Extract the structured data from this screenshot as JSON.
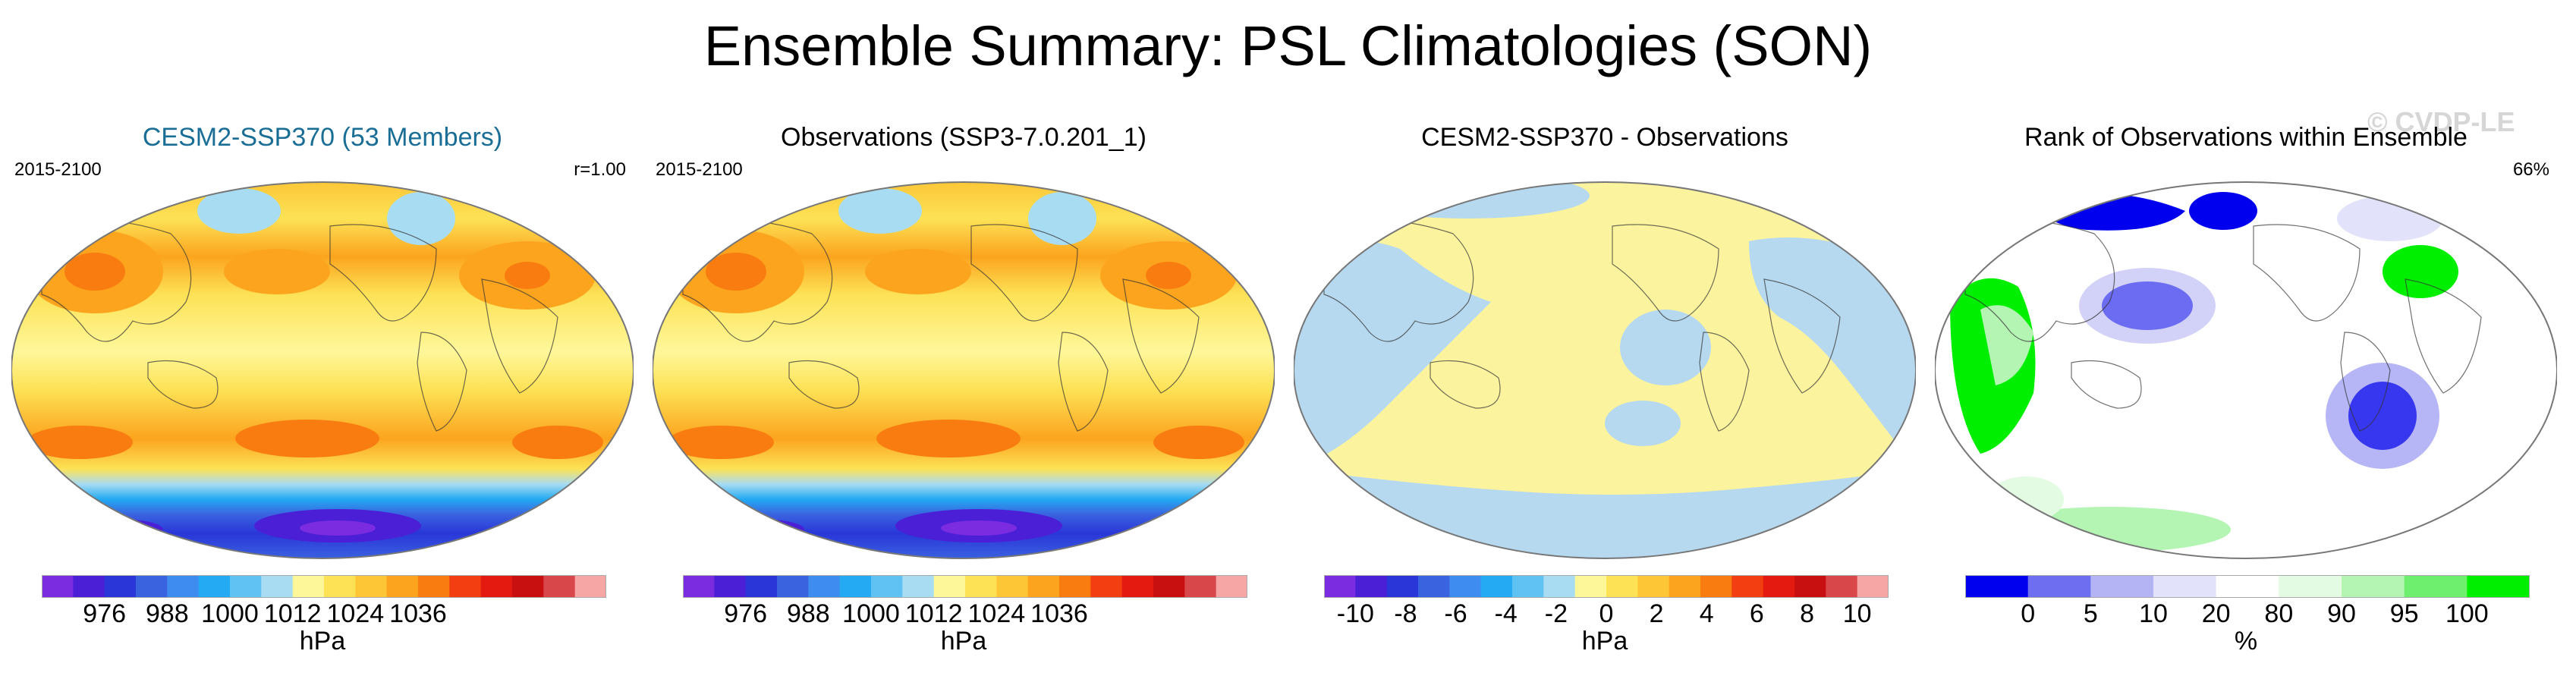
{
  "figure": {
    "title": "Ensemble Summary: PSL Climatologies (SON)",
    "watermark": "© CVDP-LE"
  },
  "panels": [
    {
      "title": "CESM2-SSP370 (53 Members)",
      "left_label": "2015-2100",
      "right_label": "r=1.00",
      "unit": "hPa",
      "ticks": [
        "976",
        "988",
        "1000",
        "1012",
        "1024",
        "1036"
      ]
    },
    {
      "title": "Observations (SSP3-7.0.201_1)",
      "left_label": "2015-2100",
      "right_label": "",
      "unit": "hPa",
      "ticks": [
        "976",
        "988",
        "1000",
        "1012",
        "1024",
        "1036"
      ]
    },
    {
      "title": "CESM2-SSP370 - Observations",
      "left_label": "",
      "right_label": "",
      "unit": "hPa",
      "ticks": [
        "-10",
        "-8",
        "-6",
        "-4",
        "-2",
        "0",
        "2",
        "4",
        "6",
        "8",
        "10"
      ]
    },
    {
      "title": "Rank of Observations within Ensemble",
      "left_label": "",
      "right_label": "66%",
      "unit": "%",
      "ticks": [
        "0",
        "5",
        "10",
        "20",
        "80",
        "90",
        "95",
        "100"
      ]
    }
  ],
  "colors": {
    "psl": [
      "#7b2be0",
      "#4b1fd6",
      "#2a36d8",
      "#3a63e0",
      "#3f8cf0",
      "#23aaf2",
      "#5fc2f2",
      "#a8dcf2",
      "#fef79a",
      "#fde256",
      "#fcc636",
      "#fca41e",
      "#f97c10",
      "#f23e10",
      "#e41a10",
      "#c91010",
      "#d8474a",
      "#f7a6a6"
    ],
    "diff": [
      "#7b2be0",
      "#4b1fd6",
      "#2a36d8",
      "#3a63e0",
      "#3f8cf0",
      "#23aaf2",
      "#5fc2f2",
      "#a8dcf2",
      "#fef79a",
      "#fde256",
      "#fcc636",
      "#fca41e",
      "#f97c10",
      "#f23e10",
      "#e41a10",
      "#c91010",
      "#d8474a",
      "#f7a6a6"
    ],
    "rank": [
      "#0000ee",
      "#6e6ef0",
      "#b4b4f5",
      "#e2e2fb",
      "#ffffff",
      "#e2fbe2",
      "#b4f5b4",
      "#6ef06e",
      "#00ee00"
    ],
    "ocean_diff": "#b6d9f0",
    "land_diff": "#fbf39e"
  },
  "chart_data": [
    {
      "type": "heatmap",
      "title": "CESM2-SSP370 (53 Members)",
      "period": "2015-2100",
      "stat": "r=1.00",
      "unit": "hPa",
      "levels": [
        970,
        976,
        982,
        988,
        994,
        1000,
        1006,
        1012,
        1018,
        1024,
        1030,
        1036,
        1042
      ],
      "colorbar_ticks": [
        976,
        988,
        1000,
        1012,
        1024,
        1036
      ],
      "features": {
        "southern_ocean_low": "~972-985 hPa",
        "subtropical_highs": "~1018-1028 hPa",
        "asia_high": "~1024 hPa"
      }
    },
    {
      "type": "heatmap",
      "title": "Observations (SSP3-7.0.201_1)",
      "period": "2015-2100",
      "unit": "hPa",
      "colorbar_ticks": [
        976,
        988,
        1000,
        1012,
        1024,
        1036
      ]
    },
    {
      "type": "heatmap",
      "title": "CESM2-SSP370 - Observations",
      "unit": "hPa",
      "colorbar_ticks": [
        -10,
        -8,
        -6,
        -4,
        -2,
        0,
        2,
        4,
        6,
        8,
        10
      ],
      "features": {
        "dominant_range": "-1 to +1 hPa"
      }
    },
    {
      "type": "heatmap",
      "title": "Rank of Observations within Ensemble",
      "unit": "%",
      "stat": "66%",
      "colorbar_ticks": [
        0,
        5,
        10,
        20,
        80,
        90,
        95,
        100
      ]
    }
  ]
}
